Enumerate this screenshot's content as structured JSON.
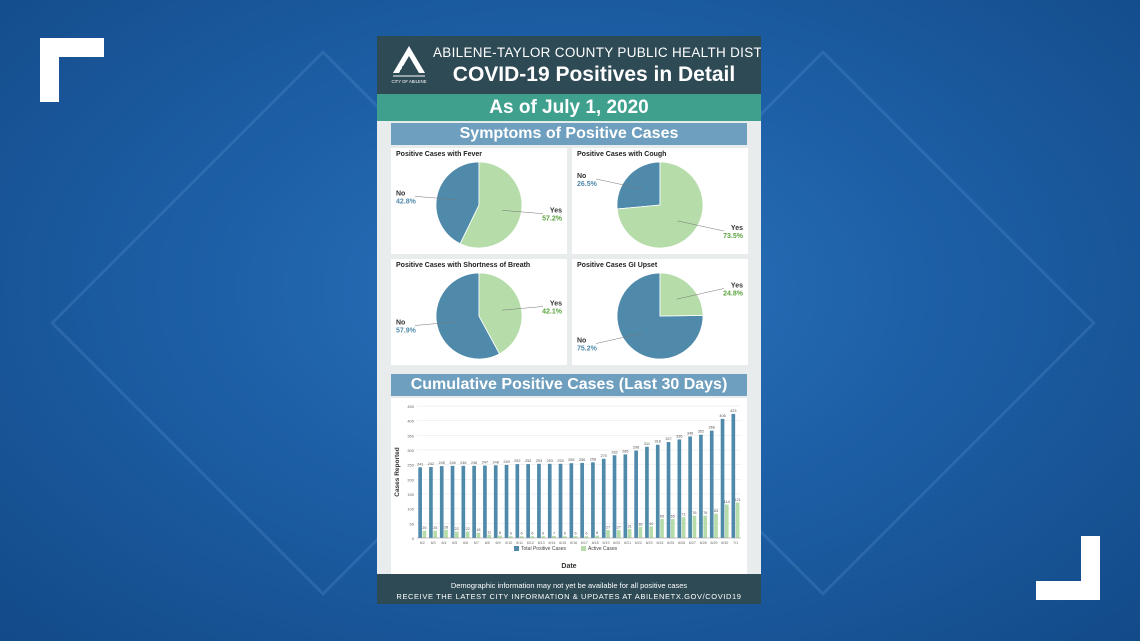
{
  "poster": {
    "org": "ABILENE-TAYLOR COUNTY PUBLIC HEALTH DISTRICT",
    "title": "COVID-19 Positives in Detail",
    "as_of": "As of July 1, 2020",
    "logo_text": "CITY OF ABILENE",
    "symptoms_header": "Symptoms of Positive Cases",
    "cumulative_header": "Cumulative Positive Cases (Last 30 Days)",
    "footer_note": "Demographic information may not yet be available for all positive cases",
    "footer_link": "RECEIVE THE LATEST CITY INFORMATION & UPDATES AT ABILENETX.GOV/COVID19"
  },
  "colors": {
    "background": "#1d5fa6",
    "header": "#2e4a55",
    "teal": "#3fa08e",
    "section": "#6f9fbf",
    "no": "#4f8aab",
    "yes": "#b5dca9",
    "yes_text": "#5aa33e"
  },
  "chart_data": [
    {
      "type": "pie",
      "title": "Positive Cases with Fever",
      "slices": [
        {
          "label": "No",
          "pct": "42.8%",
          "value": 42.8
        },
        {
          "label": "Yes",
          "pct": "57.2%",
          "value": 57.2
        }
      ]
    },
    {
      "type": "pie",
      "title": "Positive Cases with Cough",
      "slices": [
        {
          "label": "No",
          "pct": "26.5%",
          "value": 26.5
        },
        {
          "label": "Yes",
          "pct": "73.5%",
          "value": 73.5
        }
      ]
    },
    {
      "type": "pie",
      "title": "Positive Cases with Shortness of Breath",
      "slices": [
        {
          "label": "No",
          "pct": "57.9%",
          "value": 57.9
        },
        {
          "label": "Yes",
          "pct": "42.1%",
          "value": 42.1
        }
      ]
    },
    {
      "type": "pie",
      "title": "Positive Cases GI Upset",
      "slices": [
        {
          "label": "No",
          "pct": "75.2%",
          "value": 75.2
        },
        {
          "label": "Yes",
          "pct": "24.8%",
          "value": 24.8
        }
      ]
    },
    {
      "type": "bar",
      "xlabel": "Date",
      "ylabel": "Cases Reported",
      "ylim": [
        0,
        450
      ],
      "yticks": [
        0,
        50,
        100,
        150,
        200,
        250,
        300,
        350,
        400,
        450
      ],
      "categories": [
        "6/2",
        "6/3",
        "6/4",
        "6/5",
        "6/6",
        "6/7",
        "6/8",
        "6/9",
        "6/10",
        "6/11",
        "6/12",
        "6/13",
        "6/14",
        "6/15",
        "6/16",
        "6/17",
        "6/18",
        "6/19",
        "6/20",
        "6/21",
        "6/22",
        "6/23",
        "6/24",
        "6/25",
        "6/26",
        "6/27",
        "6/28",
        "6/29",
        "6/30",
        "7/1"
      ],
      "series": [
        {
          "name": "Total Positive Cases",
          "color": "#4f8aab",
          "values": [
            241,
            242,
            245,
            246,
            246,
            246,
            247,
            248,
            249,
            252,
            252,
            253,
            253,
            253,
            255,
            256,
            258,
            270,
            282,
            285,
            298,
            311,
            318,
            327,
            336,
            346,
            352,
            366,
            406,
            423
          ]
        },
        {
          "name": "Active Cases",
          "color": "#b5dca9",
          "values": [
            25,
            25,
            28,
            22,
            22,
            18,
            11,
            8,
            6,
            6,
            6,
            6,
            7,
            6,
            6,
            6,
            8,
            27,
            27,
            31,
            38,
            40,
            65,
            65,
            71,
            76,
            76,
            83,
            114,
            121
          ]
        }
      ],
      "legend": "bottom"
    }
  ]
}
